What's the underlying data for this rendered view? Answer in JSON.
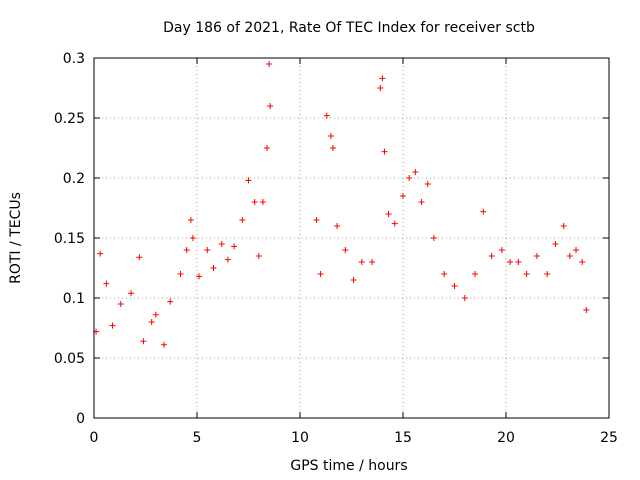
{
  "chart_data": {
    "type": "scatter",
    "title": "Day 186 of 2021, Rate Of TEC Index for receiver sctb",
    "xlabel": "GPS time / hours",
    "ylabel": "ROTI / TECUs",
    "xlim": [
      0,
      25
    ],
    "ylim": [
      0,
      0.3
    ],
    "x_ticks": [
      "0",
      "5",
      "10",
      "15",
      "20",
      "25"
    ],
    "y_ticks": [
      "0",
      "0.05",
      "0.1",
      "0.15",
      "0.2",
      "0.25",
      "0.3"
    ],
    "grid": true,
    "marker": "+",
    "color": "#ff0000",
    "coverage_hours": [
      [
        0,
        8.6
      ],
      [
        10.6,
        23.9
      ]
    ],
    "series": [
      {
        "name": "",
        "x": [
          0.1,
          0.3,
          0.6,
          0.9,
          1.3,
          1.8,
          2.2,
          2.4,
          2.8,
          3.0,
          3.4,
          3.7,
          4.2,
          4.5,
          4.7,
          4.8,
          5.1,
          5.5,
          5.8,
          6.2,
          6.5,
          6.8,
          7.2,
          7.5,
          7.8,
          8.0,
          8.2,
          8.4,
          8.5,
          8.55,
          10.8,
          11.0,
          11.3,
          11.5,
          11.6,
          11.8,
          12.2,
          12.6,
          13.0,
          13.5,
          13.9,
          14.0,
          14.1,
          14.3,
          14.6,
          15.0,
          15.3,
          15.6,
          15.9,
          16.2,
          16.5,
          17.0,
          17.5,
          18.0,
          18.5,
          18.9,
          19.3,
          19.8,
          20.2,
          20.6,
          21.0,
          21.5,
          22.0,
          22.4,
          22.8,
          23.1,
          23.4,
          23.7,
          23.9
        ],
        "y": [
          0.072,
          0.137,
          0.112,
          0.077,
          0.095,
          0.104,
          0.134,
          0.064,
          0.08,
          0.086,
          0.061,
          0.097,
          0.12,
          0.14,
          0.165,
          0.15,
          0.118,
          0.14,
          0.125,
          0.145,
          0.132,
          0.143,
          0.165,
          0.198,
          0.18,
          0.135,
          0.18,
          0.225,
          0.295,
          0.26,
          0.165,
          0.12,
          0.252,
          0.235,
          0.225,
          0.16,
          0.14,
          0.115,
          0.13,
          0.13,
          0.275,
          0.283,
          0.222,
          0.17,
          0.162,
          0.185,
          0.2,
          0.205,
          0.18,
          0.195,
          0.15,
          0.12,
          0.11,
          0.1,
          0.12,
          0.172,
          0.135,
          0.14,
          0.13,
          0.13,
          0.12,
          0.135,
          0.12,
          0.145,
          0.16,
          0.135,
          0.14,
          0.13,
          0.09
        ]
      }
    ]
  }
}
